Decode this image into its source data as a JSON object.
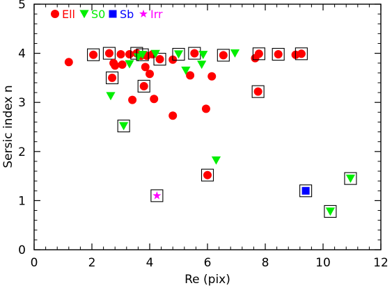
{
  "chart_data": {
    "type": "scatter",
    "title": "",
    "xlabel": "Re (pix)",
    "ylabel": "Sersic index n",
    "xlim": [
      0,
      12
    ],
    "ylim": [
      0,
      5
    ],
    "x_ticks": [
      0,
      2,
      4,
      6,
      8,
      10,
      12
    ],
    "y_ticks": [
      0,
      1,
      2,
      3,
      4,
      5
    ],
    "grid": false,
    "legend_position": "top-left",
    "series": [
      {
        "name": "Ell",
        "marker": "circle",
        "color": "#ff0000",
        "points": [
          {
            "x": 1.2,
            "y": 3.82,
            "boxed": false
          },
          {
            "x": 2.05,
            "y": 3.97,
            "boxed": true
          },
          {
            "x": 2.6,
            "y": 4.0,
            "boxed": true
          },
          {
            "x": 2.7,
            "y": 3.5,
            "boxed": true
          },
          {
            "x": 2.75,
            "y": 3.8,
            "boxed": false
          },
          {
            "x": 2.8,
            "y": 3.75,
            "boxed": false
          },
          {
            "x": 3.0,
            "y": 3.98,
            "boxed": false
          },
          {
            "x": 3.05,
            "y": 3.77,
            "boxed": false
          },
          {
            "x": 3.3,
            "y": 3.98,
            "boxed": false
          },
          {
            "x": 3.4,
            "y": 3.05,
            "boxed": false
          },
          {
            "x": 3.55,
            "y": 4.0,
            "boxed": true
          },
          {
            "x": 3.7,
            "y": 3.95,
            "boxed": false
          },
          {
            "x": 3.8,
            "y": 3.33,
            "boxed": true
          },
          {
            "x": 3.85,
            "y": 3.72,
            "boxed": false
          },
          {
            "x": 3.9,
            "y": 3.95,
            "boxed": false
          },
          {
            "x": 4.0,
            "y": 3.58,
            "boxed": false
          },
          {
            "x": 4.1,
            "y": 3.98,
            "boxed": false
          },
          {
            "x": 4.15,
            "y": 3.07,
            "boxed": false
          },
          {
            "x": 4.35,
            "y": 3.88,
            "boxed": true
          },
          {
            "x": 4.8,
            "y": 2.73,
            "boxed": false
          },
          {
            "x": 4.8,
            "y": 3.87,
            "boxed": false
          },
          {
            "x": 5.4,
            "y": 3.55,
            "boxed": false
          },
          {
            "x": 5.55,
            "y": 4.0,
            "boxed": true
          },
          {
            "x": 5.95,
            "y": 2.87,
            "boxed": false
          },
          {
            "x": 6.0,
            "y": 1.52,
            "boxed": true
          },
          {
            "x": 6.15,
            "y": 3.53,
            "boxed": false
          },
          {
            "x": 6.55,
            "y": 3.96,
            "boxed": true
          },
          {
            "x": 7.65,
            "y": 3.9,
            "boxed": false
          },
          {
            "x": 7.75,
            "y": 3.22,
            "boxed": true
          },
          {
            "x": 7.78,
            "y": 3.99,
            "boxed": true
          },
          {
            "x": 8.45,
            "y": 3.98,
            "boxed": true
          },
          {
            "x": 9.05,
            "y": 3.97,
            "boxed": false
          },
          {
            "x": 9.25,
            "y": 3.99,
            "boxed": true
          }
        ]
      },
      {
        "name": "S0",
        "marker": "triangle-down",
        "color": "#00ee00",
        "points": [
          {
            "x": 2.65,
            "y": 3.13,
            "boxed": false
          },
          {
            "x": 3.1,
            "y": 2.52,
            "boxed": true
          },
          {
            "x": 3.3,
            "y": 3.78,
            "boxed": false
          },
          {
            "x": 3.6,
            "y": 3.92,
            "boxed": false
          },
          {
            "x": 3.75,
            "y": 3.97,
            "boxed": true
          },
          {
            "x": 4.2,
            "y": 3.99,
            "boxed": false
          },
          {
            "x": 5.0,
            "y": 3.98,
            "boxed": true
          },
          {
            "x": 5.25,
            "y": 3.65,
            "boxed": false
          },
          {
            "x": 5.8,
            "y": 3.77,
            "boxed": false
          },
          {
            "x": 5.85,
            "y": 3.97,
            "boxed": false
          },
          {
            "x": 6.3,
            "y": 1.82,
            "boxed": false
          },
          {
            "x": 6.95,
            "y": 4.0,
            "boxed": false
          },
          {
            "x": 10.25,
            "y": 0.78,
            "boxed": true
          },
          {
            "x": 10.95,
            "y": 1.45,
            "boxed": true
          }
        ]
      },
      {
        "name": "Sb",
        "marker": "square",
        "color": "#0000ff",
        "points": [
          {
            "x": 9.4,
            "y": 1.2,
            "boxed": true
          }
        ]
      },
      {
        "name": "Irr",
        "marker": "star",
        "color": "#ff00ff",
        "points": [
          {
            "x": 4.25,
            "y": 1.1,
            "boxed": true
          }
        ]
      }
    ]
  }
}
